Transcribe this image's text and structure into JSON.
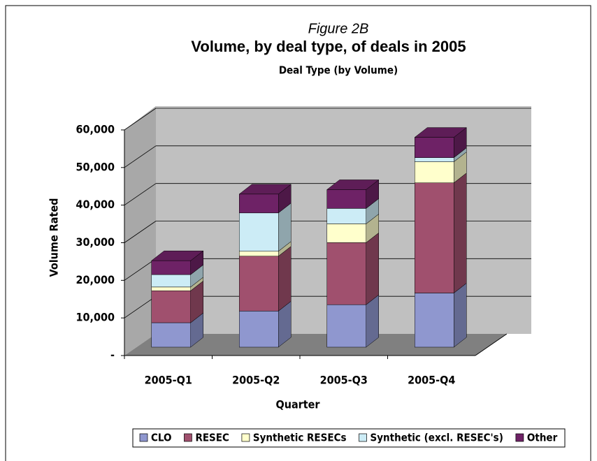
{
  "chart_data": {
    "type": "bar3d_stacked",
    "subtitle_top": "Figure 2B",
    "title": "Volume, by deal type, of deals in 2005",
    "chart_title": "Deal Type (by Volume)",
    "x_label": "Quarter",
    "y_label": "Volume Rated",
    "categories": [
      "2005-Q1",
      "2005-Q2",
      "2005-Q3",
      "2005-Q4"
    ],
    "series": [
      {
        "name": "CLO",
        "color": "#8f97cf",
        "values": [
          6500,
          9600,
          11300,
          14400
        ]
      },
      {
        "name": "RESEC",
        "color": "#a0506e",
        "values": [
          8500,
          14600,
          16500,
          29300
        ]
      },
      {
        "name": "Synthetic RESECs",
        "color": "#ffffcc",
        "values": [
          1000,
          1300,
          5000,
          5600
        ]
      },
      {
        "name": "Synthetic (excl. RESEC's)",
        "color": "#ccecf6",
        "values": [
          3300,
          10200,
          4100,
          1100
        ]
      },
      {
        "name": "Other",
        "color": "#6e2266",
        "values": [
          3700,
          5000,
          5000,
          5400
        ]
      }
    ],
    "ylim": [
      0,
      60000
    ],
    "yticks": [
      {
        "value": 0,
        "label": "-"
      },
      {
        "value": 10000,
        "label": "10,000"
      },
      {
        "value": 20000,
        "label": "20,000"
      },
      {
        "value": 30000,
        "label": "30,000"
      },
      {
        "value": 40000,
        "label": "40,000"
      },
      {
        "value": 50000,
        "label": "50,000"
      },
      {
        "value": 60000,
        "label": "60,000"
      }
    ],
    "grid": true,
    "legend": "bottom"
  }
}
